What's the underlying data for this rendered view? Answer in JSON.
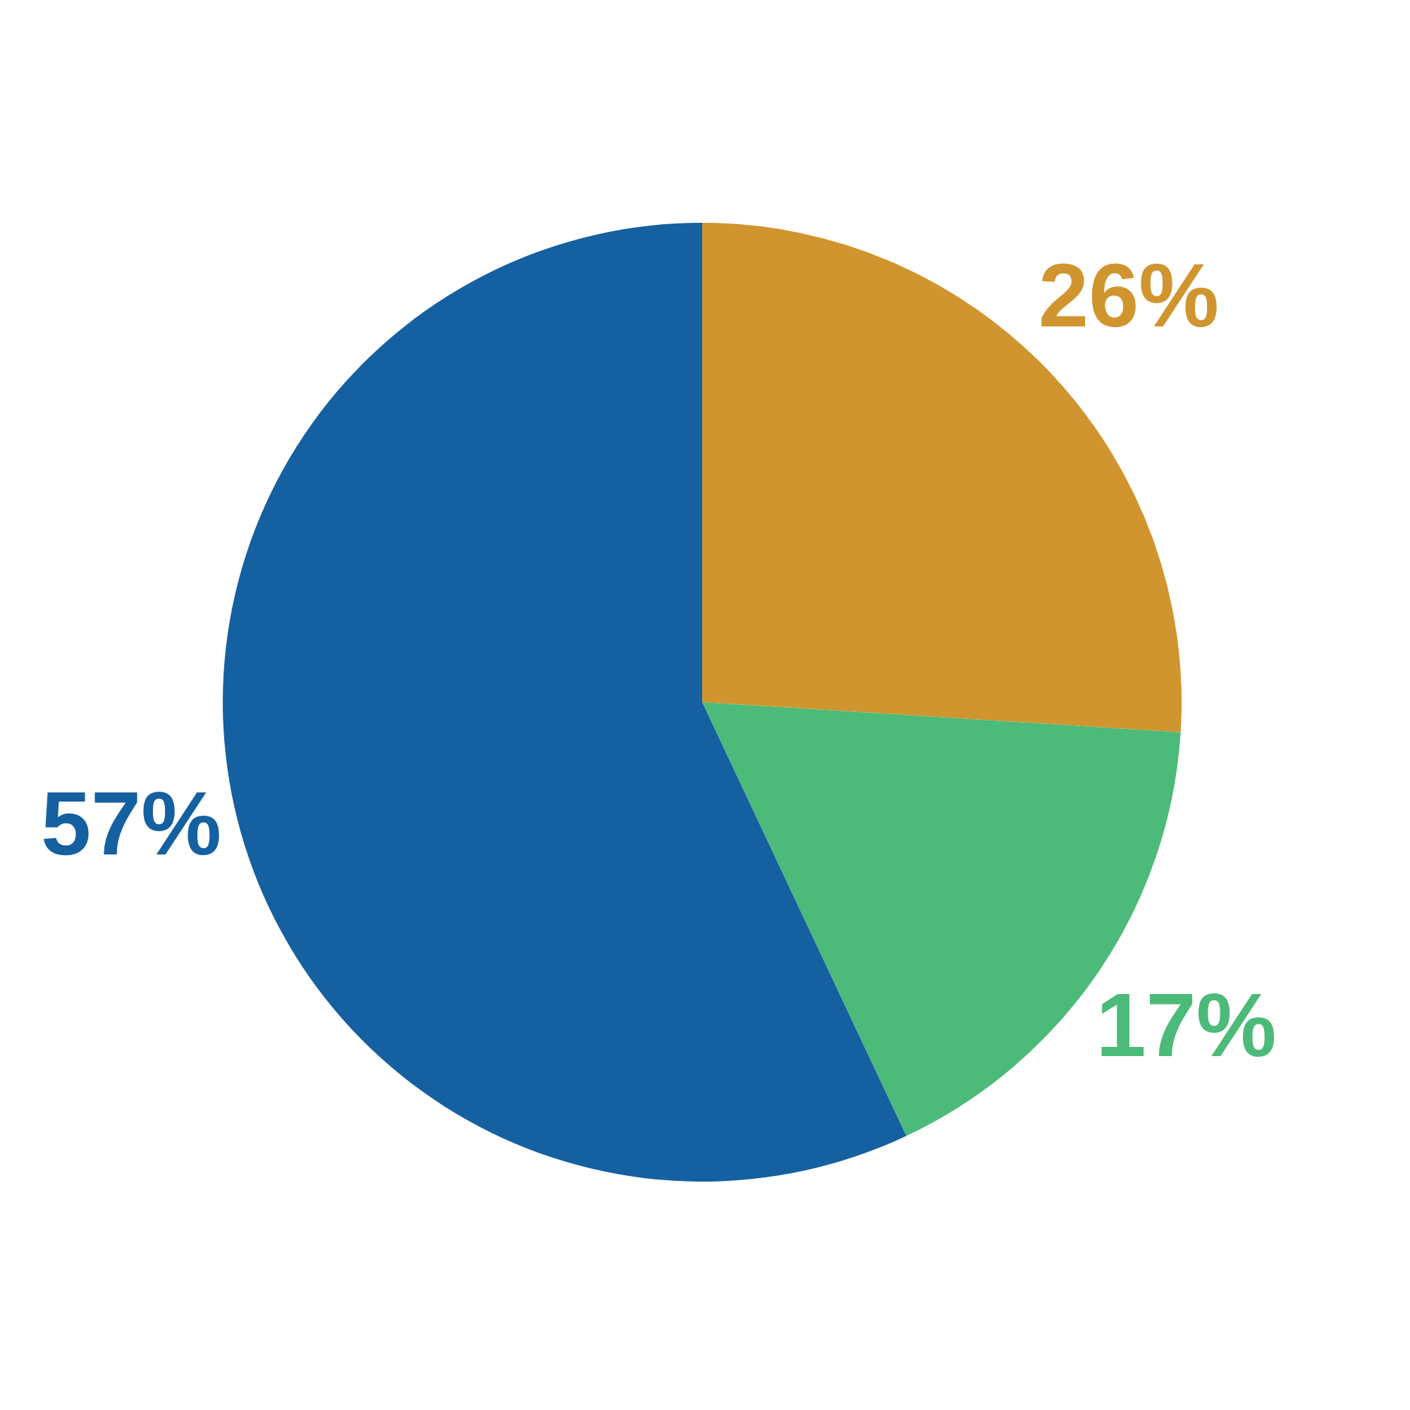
{
  "chart_data": {
    "type": "pie",
    "categories": [
      null,
      null,
      null
    ],
    "values": [
      26,
      17,
      57
    ],
    "colors": [
      "#d0952e",
      "#4cba78",
      "#1560a0"
    ],
    "value_labels": [
      "26%",
      "17%",
      "57%"
    ],
    "legend": false
  }
}
